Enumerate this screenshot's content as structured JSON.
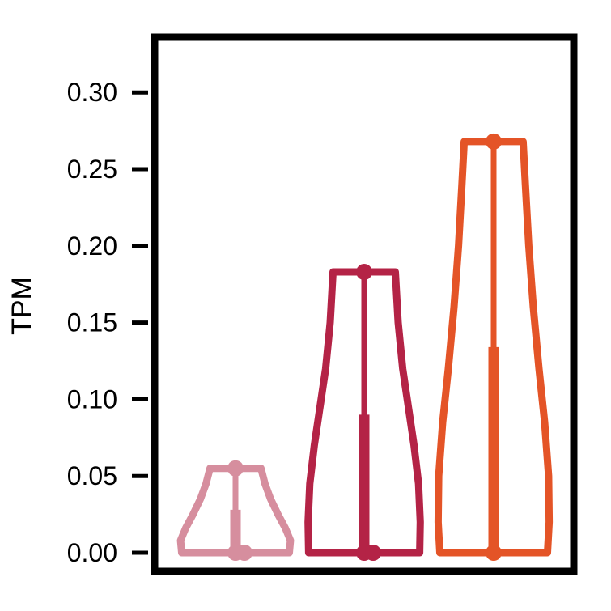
{
  "chart_data": {
    "type": "violin",
    "title": "",
    "xlabel": "",
    "ylabel": "TPM",
    "ylim": [
      0,
      0.33
    ],
    "yticks": [
      "0.00",
      "0.05",
      "0.10",
      "0.15",
      "0.20",
      "0.25",
      "0.30"
    ],
    "grid": false,
    "legend": "none",
    "series": [
      {
        "color": "#D68E9E",
        "min": 0.0,
        "max": 0.055,
        "median": 0.0,
        "upper_quartile": 0.028,
        "points": [
          0.0,
          0.0,
          0.055
        ],
        "profile": [
          {
            "y": 0.0,
            "w": 0.95
          },
          {
            "y": 0.008,
            "w": 0.97
          },
          {
            "y": 0.016,
            "w": 0.88
          },
          {
            "y": 0.025,
            "w": 0.75
          },
          {
            "y": 0.035,
            "w": 0.62
          },
          {
            "y": 0.045,
            "w": 0.52
          },
          {
            "y": 0.055,
            "w": 0.45
          }
        ]
      },
      {
        "color": "#B42346",
        "min": 0.0,
        "max": 0.183,
        "median": 0.0,
        "upper_quartile": 0.09,
        "points": [
          0.0,
          0.0,
          0.183
        ],
        "profile": [
          {
            "y": 0.0,
            "w": 0.98
          },
          {
            "y": 0.02,
            "w": 0.99
          },
          {
            "y": 0.045,
            "w": 0.96
          },
          {
            "y": 0.07,
            "w": 0.88
          },
          {
            "y": 0.095,
            "w": 0.78
          },
          {
            "y": 0.12,
            "w": 0.68
          },
          {
            "y": 0.15,
            "w": 0.6
          },
          {
            "y": 0.183,
            "w": 0.55
          }
        ]
      },
      {
        "color": "#E45427",
        "min": 0.0,
        "max": 0.268,
        "median": 0.0,
        "upper_quartile": 0.134,
        "points": [
          0.0,
          0.268
        ],
        "profile": [
          {
            "y": 0.0,
            "w": 0.95
          },
          {
            "y": 0.02,
            "w": 0.98
          },
          {
            "y": 0.05,
            "w": 0.97
          },
          {
            "y": 0.085,
            "w": 0.9
          },
          {
            "y": 0.12,
            "w": 0.8
          },
          {
            "y": 0.16,
            "w": 0.7
          },
          {
            "y": 0.2,
            "w": 0.62
          },
          {
            "y": 0.24,
            "w": 0.56
          },
          {
            "y": 0.268,
            "w": 0.52
          }
        ]
      }
    ]
  }
}
